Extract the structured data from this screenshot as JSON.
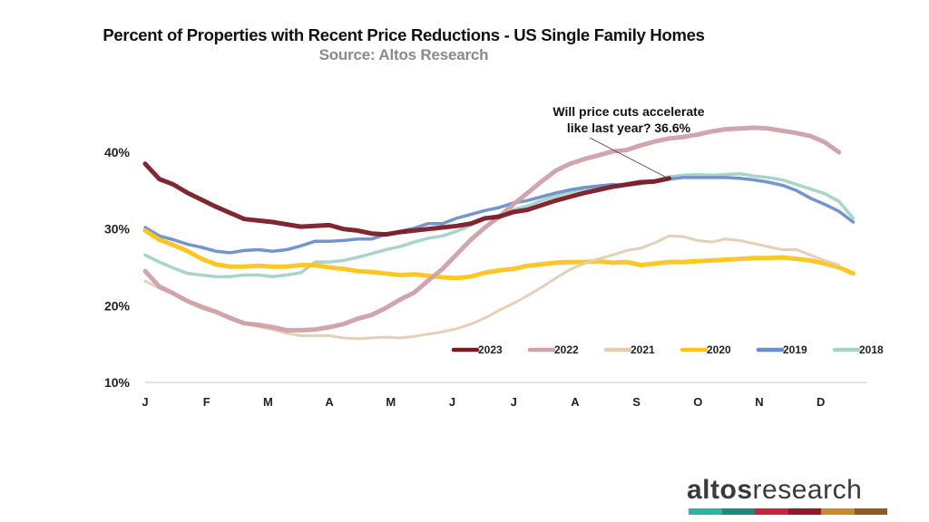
{
  "header": {
    "title": "Percent of Properties with Recent Price Reductions - US Single Family Homes",
    "subtitle": "Source: Altos Research"
  },
  "annotation": {
    "line1": "Will price cuts accelerate",
    "line2": "like last year? 36.6%"
  },
  "logo": {
    "bold": "altos",
    "light": "research",
    "bar_colors": [
      "#2bb3a3",
      "#1e8a7e",
      "#c0273a",
      "#8e1a2a",
      "#c98a2c",
      "#8f5a24"
    ]
  },
  "chart_data": {
    "type": "line",
    "title": "Percent of Properties with Recent Price Reductions - US Single Family Homes",
    "subtitle": "Source: Altos Research",
    "xlabel": "",
    "ylabel": "",
    "x_unit": "week of year",
    "categories": [
      "J",
      "F",
      "M",
      "A",
      "M",
      "J",
      "J",
      "A",
      "S",
      "O",
      "N",
      "D"
    ],
    "yticks": [
      "10%",
      "20%",
      "30%",
      "40%"
    ],
    "ytick_values": [
      10,
      20,
      30,
      40
    ],
    "ylim": [
      10,
      42
    ],
    "xlim": [
      0,
      51
    ],
    "grid": false,
    "legend_position": "bottom-right",
    "annotation": {
      "text": "Will price cuts accelerate like last year? 36.6%",
      "x": 37,
      "y": 36.6
    },
    "series": [
      {
        "name": "2023",
        "color": "#7b1a25",
        "width": 5,
        "values": [
          38.5,
          36.5,
          35.8,
          34.7,
          33.8,
          32.9,
          32.1,
          31.3,
          31.1,
          30.9,
          30.6,
          30.3,
          30.4,
          30.5,
          30.0,
          29.8,
          29.4,
          29.3,
          29.6,
          29.8,
          30.0,
          30.2,
          30.4,
          30.7,
          31.4,
          31.6,
          32.2,
          32.5,
          33.1,
          33.7,
          34.2,
          34.7,
          35.1,
          35.5,
          35.8,
          36.1,
          36.2,
          36.6
        ]
      },
      {
        "name": "2022",
        "color": "#cfa0a8",
        "width": 5,
        "values": [
          24.5,
          22.5,
          21.6,
          20.6,
          19.8,
          19.2,
          18.4,
          17.7,
          17.5,
          17.2,
          16.8,
          16.8,
          16.9,
          17.2,
          17.6,
          18.3,
          18.8,
          19.7,
          20.8,
          21.7,
          23.3,
          24.8,
          26.7,
          28.6,
          30.2,
          31.6,
          33.2,
          34.7,
          36.2,
          37.6,
          38.5,
          39.1,
          39.6,
          40.1,
          40.3,
          40.9,
          41.4,
          41.8,
          42.0,
          42.3,
          42.7,
          43.0,
          43.1,
          43.2,
          43.1,
          42.8,
          42.5,
          42.1,
          41.3,
          40.0,
          null,
          null
        ]
      },
      {
        "name": "2021",
        "color": "#e2cdb3",
        "width": 3,
        "values": [
          23.2,
          22.3,
          21.5,
          20.7,
          20.0,
          19.3,
          18.5,
          17.7,
          17.3,
          16.9,
          16.4,
          16.1,
          16.1,
          16.1,
          15.8,
          15.7,
          15.8,
          15.9,
          15.8,
          16.0,
          16.3,
          16.6,
          17.0,
          17.6,
          18.4,
          19.4,
          20.3,
          21.3,
          22.4,
          23.6,
          24.7,
          25.5,
          26.1,
          26.6,
          27.2,
          27.5,
          28.2,
          29.1,
          29.0,
          28.5,
          28.3,
          28.7,
          28.5,
          28.1,
          27.7,
          27.3,
          27.3,
          26.6,
          25.9,
          25.3,
          null,
          null
        ]
      },
      {
        "name": "2020",
        "color": "#fec419",
        "width": 5,
        "values": [
          29.8,
          28.6,
          27.9,
          27.1,
          26.1,
          25.4,
          25.1,
          25.1,
          25.2,
          25.1,
          25.1,
          25.3,
          25.3,
          25.0,
          24.8,
          24.5,
          24.4,
          24.2,
          24.0,
          24.1,
          23.9,
          23.7,
          23.6,
          23.8,
          24.3,
          24.6,
          24.8,
          25.2,
          25.4,
          25.6,
          25.7,
          25.7,
          25.8,
          25.6,
          25.7,
          25.3,
          25.5,
          25.7,
          25.7,
          25.8,
          25.9,
          26.0,
          26.1,
          26.2,
          26.2,
          26.3,
          26.1,
          25.9,
          25.5,
          25.0,
          24.2,
          null
        ]
      },
      {
        "name": "2019",
        "color": "#6b8ecb",
        "width": 3.5,
        "values": [
          30.2,
          29.1,
          28.6,
          28.0,
          27.6,
          27.1,
          26.9,
          27.2,
          27.3,
          27.1,
          27.3,
          27.8,
          28.4,
          28.4,
          28.5,
          28.7,
          28.7,
          29.3,
          29.7,
          30.1,
          30.7,
          30.7,
          31.4,
          31.9,
          32.4,
          32.8,
          33.4,
          33.7,
          34.2,
          34.7,
          35.1,
          35.4,
          35.6,
          35.8,
          35.7,
          35.9,
          36.2,
          36.5,
          36.7,
          36.7,
          36.7,
          36.7,
          36.6,
          36.4,
          36.1,
          35.7,
          35.0,
          34.0,
          33.2,
          32.3,
          30.9,
          null
        ]
      },
      {
        "name": "2018",
        "color": "#a3d2c8",
        "width": 3.5,
        "values": [
          26.6,
          25.7,
          24.9,
          24.2,
          24.0,
          23.8,
          23.8,
          24.0,
          24.0,
          23.8,
          24.0,
          24.3,
          25.7,
          25.7,
          25.9,
          26.3,
          26.8,
          27.3,
          27.7,
          28.3,
          28.8,
          29.1,
          29.7,
          30.5,
          31.3,
          31.8,
          32.5,
          33.0,
          33.7,
          34.3,
          34.8,
          35.2,
          35.6,
          35.7,
          35.8,
          36.0,
          36.3,
          36.8,
          37.0,
          37.1,
          37.0,
          37.1,
          37.2,
          36.9,
          36.7,
          36.4,
          35.8,
          35.2,
          34.6,
          33.6,
          31.4,
          null
        ]
      }
    ]
  }
}
